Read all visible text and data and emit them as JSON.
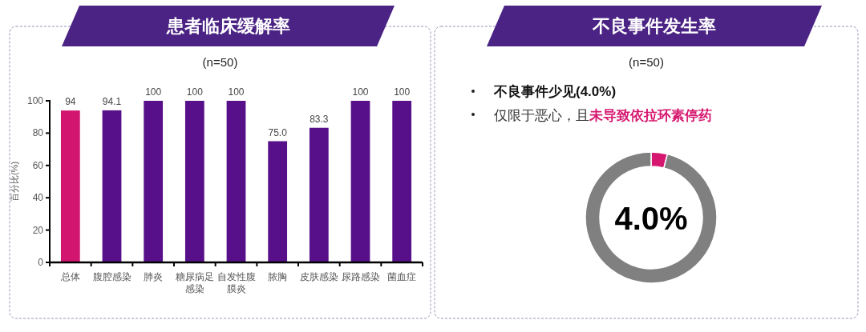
{
  "chart_data": [
    {
      "type": "bar",
      "title": "患者临床缓解率",
      "subtitle": "(n=50)",
      "ylabel": "百分比(%)",
      "categories": [
        "总体",
        "腹腔感染",
        "肺炎",
        "糖尿病足感染",
        "自发性腹膜炎",
        "脓胸",
        "皮肤感染",
        "尿路感染",
        "菌血症"
      ],
      "values": [
        94,
        94.1,
        100,
        100,
        100,
        75.0,
        83.3,
        100,
        100
      ],
      "value_labels": [
        "94",
        "94.1",
        "100",
        "100",
        "100",
        "75.0",
        "83.3",
        "100",
        "100"
      ],
      "colors": [
        "#d2166f",
        "#571089",
        "#571089",
        "#571089",
        "#571089",
        "#571089",
        "#571089",
        "#571089",
        "#571089"
      ],
      "ylim": [
        0,
        100
      ],
      "yticks": [
        0,
        20,
        40,
        60,
        80,
        100
      ]
    },
    {
      "type": "donut",
      "title": "不良事件发生率",
      "subtitle": "(n=50)",
      "categories": [
        null,
        null
      ],
      "values": [
        4.0,
        96.0
      ],
      "colors": [
        "#d6176f",
        "#808080"
      ],
      "annotations": [
        "不良事件少见(4.0%)",
        "仅限于恶心，且",
        "未导致依拉环素停药",
        "4.0%"
      ]
    }
  ]
}
